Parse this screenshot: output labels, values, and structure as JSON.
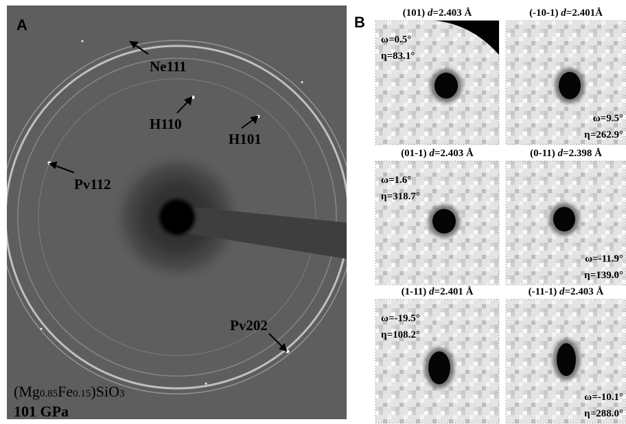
{
  "panel_a": {
    "label": "A",
    "annotations": [
      "Ne111",
      "H110",
      "H101",
      "Pv112",
      "Pv202"
    ],
    "composition": [
      "(Mg",
      "0.85",
      "Fe",
      "0.15",
      ")SiO",
      "3"
    ],
    "pressure": "101 GPa"
  },
  "panel_b": {
    "label": "B",
    "panels": [
      {
        "hkl": "(101)",
        "d_symbol": "d",
        "d_value": "=2.403 Å",
        "omega": "ω=0.5°",
        "eta": "η=83.1°"
      },
      {
        "hkl": "(-10-1)",
        "d_symbol": "d",
        "d_value": "=2.401Å",
        "omega": "ω=9.5°",
        "eta": "η=262.9°"
      },
      {
        "hkl": "(01-1)",
        "d_symbol": "d",
        "d_value": "=2.403 Å",
        "omega": "ω=1.6°",
        "eta": "η=318.7°"
      },
      {
        "hkl": "(0-11)",
        "d_symbol": "d",
        "d_value": "=2.398 Å",
        "omega": "ω=-11.9°",
        "eta": "η=139.0°"
      },
      {
        "hkl": "(1-11)",
        "d_symbol": "d",
        "d_value": "=2.401 Å",
        "omega": "ω=-19.5°",
        "eta": "η=108.2°"
      },
      {
        "hkl": "(-11-1)",
        "d_symbol": "d",
        "d_value": "=2.403 Å",
        "omega": "ω=-10.1°",
        "eta": "η=288.0°"
      }
    ]
  }
}
